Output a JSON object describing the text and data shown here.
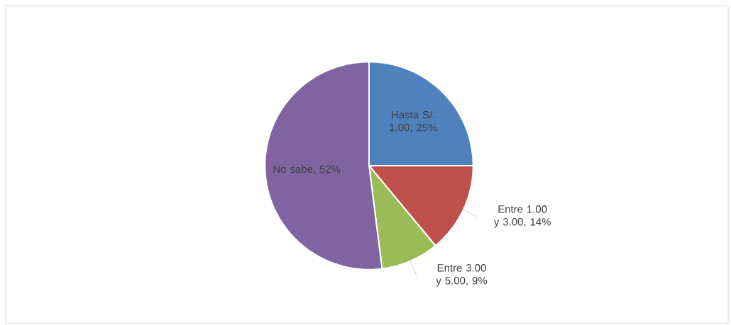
{
  "chart_data": {
    "type": "pie",
    "categories": [
      "Hasta S/. 1.00",
      "Entre 1.00 y 3.00",
      "Entre 3.00 y 5.00",
      "No sabe"
    ],
    "values": [
      25,
      14,
      9,
      52
    ],
    "value_labels": [
      ", 25%",
      ", 14%",
      ", 9%",
      ", 52%"
    ],
    "colors": [
      "#4f81bd",
      "#c0504d",
      "#9bbb59",
      "#8064a2"
    ]
  }
}
